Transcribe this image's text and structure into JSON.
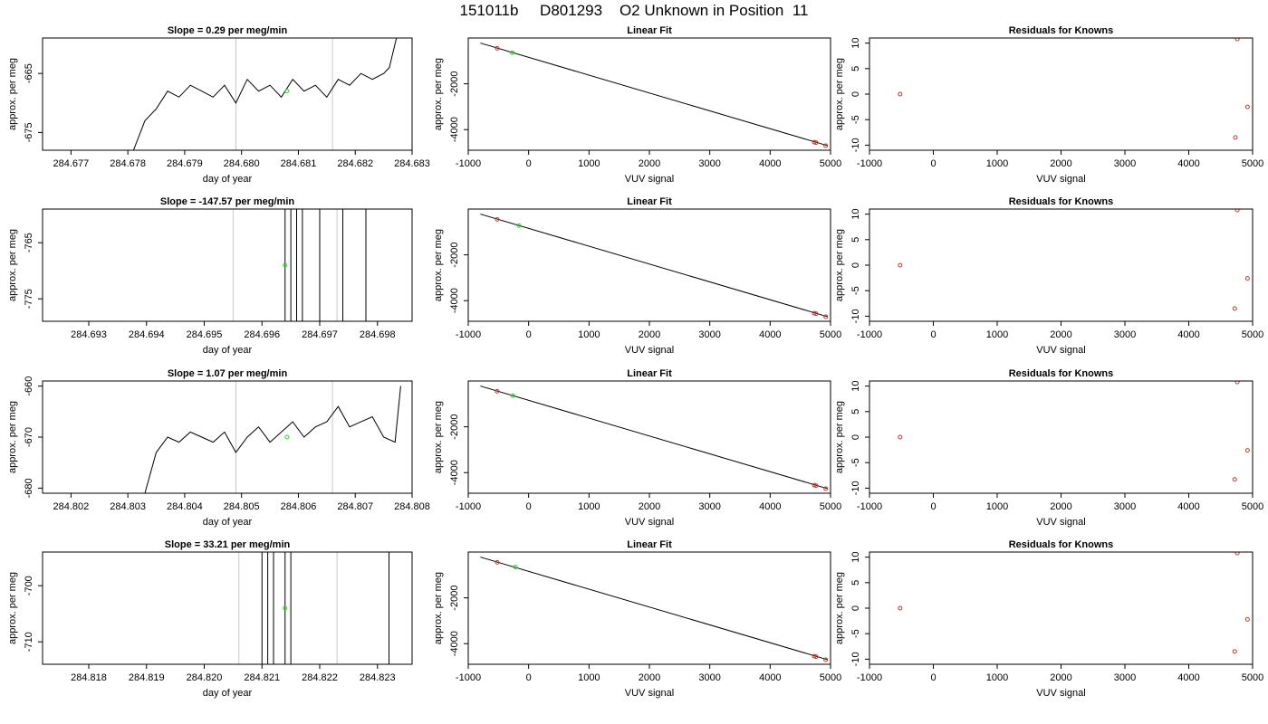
{
  "figure": {
    "title": "151011b     D801293    O2 Unknown in Position  11",
    "colors": {
      "trace": "#000000",
      "marker_line": "#c8c8c8",
      "unknown_point": "#22dd22",
      "known_point": "#c0392b"
    }
  },
  "chart_data": [
    {
      "type": "line",
      "title": "Slope =  0.29  per meg/min",
      "xlabel": "day of year",
      "ylabel": "approx. per meg",
      "xlim": [
        284.6765,
        284.683
      ],
      "ylim": [
        -678,
        -659
      ],
      "xticks": [
        "284.677",
        "284.678",
        "284.679",
        "284.680",
        "284.681",
        "284.682",
        "284.683"
      ],
      "yticks": [
        "-665",
        "-675"
      ],
      "vlines": [
        284.6799,
        284.6816
      ],
      "unknown_point": {
        "x": 284.6808,
        "y": -668
      },
      "series": [
        {
          "x": [
            284.6781,
            284.6783,
            284.6785,
            284.6787,
            284.6789,
            284.6791,
            284.6793,
            284.6795,
            284.6797,
            284.6799,
            284.6801,
            284.6803,
            284.6805,
            284.6807,
            284.6809,
            284.6811,
            284.6813,
            284.6815,
            284.6817,
            284.6819,
            284.6821,
            284.6823,
            284.6825,
            284.6826,
            284.68275
          ],
          "y": [
            -678,
            -673,
            -671,
            -668,
            -669,
            -667,
            -668,
            -669,
            -667,
            -670,
            -666,
            -668,
            -667,
            -669,
            -666,
            -668,
            -667,
            -669,
            -666,
            -667,
            -665,
            -666,
            -665,
            -664,
            -658
          ]
        }
      ]
    },
    {
      "type": "line",
      "title": "Slope =  -147.57  per meg/min",
      "xlabel": "day of year",
      "ylabel": "approx. per meg",
      "xlim": [
        284.6922,
        284.6986
      ],
      "ylim": [
        -779,
        -759
      ],
      "xticks": [
        "284.693",
        "284.694",
        "284.695",
        "284.696",
        "284.697",
        "284.698"
      ],
      "yticks": [
        "-765",
        "-775"
      ],
      "vlines": [
        284.6955,
        284.6973
      ],
      "unknown_point": {
        "x": 284.6964,
        "y": -769
      },
      "spikes": [
        284.6964,
        284.6965,
        284.6966,
        284.6967,
        284.697,
        284.6974,
        284.6978,
        284.6978
      ]
    },
    {
      "type": "line",
      "title": "Slope =  1.07  per meg/min",
      "xlabel": "day of year",
      "ylabel": "approx. per meg",
      "xlim": [
        284.8015,
        284.808
      ],
      "ylim": [
        -681,
        -659
      ],
      "xticks": [
        "284.802",
        "284.803",
        "284.804",
        "284.805",
        "284.806",
        "284.807",
        "284.808"
      ],
      "yticks": [
        "-660",
        "-670",
        "-680"
      ],
      "vlines": [
        284.8049,
        284.8066
      ],
      "unknown_point": {
        "x": 284.8058,
        "y": -670
      },
      "series": [
        {
          "x": [
            284.8033,
            284.8035,
            284.8037,
            284.8039,
            284.8041,
            284.8043,
            284.8045,
            284.8047,
            284.8049,
            284.8051,
            284.8053,
            284.8055,
            284.8057,
            284.8059,
            284.8061,
            284.8063,
            284.8065,
            284.8067,
            284.8069,
            284.8071,
            284.8073,
            284.8075,
            284.8077,
            284.8078
          ],
          "y": [
            -681,
            -673,
            -670,
            -671,
            -669,
            -670,
            -671,
            -669,
            -673,
            -670,
            -668,
            -671,
            -669,
            -667,
            -670,
            -668,
            -667,
            -664,
            -668,
            -667,
            -666,
            -670,
            -671,
            -660
          ]
        }
      ]
    },
    {
      "type": "line",
      "title": "Slope =  33.21  per meg/min",
      "xlabel": "day of year",
      "ylabel": "approx. per meg",
      "xlim": [
        284.8172,
        284.8236
      ],
      "ylim": [
        -714,
        -694
      ],
      "xticks": [
        "284.818",
        "284.819",
        "284.820",
        "284.821",
        "284.822",
        "284.823"
      ],
      "yticks": [
        "-700",
        "-710"
      ],
      "vlines": [
        284.8206,
        284.8223
      ],
      "unknown_point": {
        "x": 284.8214,
        "y": -704
      },
      "spikes": [
        284.821,
        284.8211,
        284.8212,
        284.8214,
        284.8215,
        284.8232
      ]
    },
    {
      "type": "scatter",
      "title": "Linear Fit",
      "xlabel": "VUV signal",
      "ylabel": "approx. per meg",
      "xlim": [
        -1000,
        5000
      ],
      "ylim": [
        -4900,
        0
      ],
      "xticks": [
        "-1000",
        "0",
        "1000",
        "2000",
        "3000",
        "4000",
        "5000"
      ],
      "yticks": [
        "-2000",
        "-4000"
      ],
      "fit": [
        [
          -800,
          -220
        ],
        [
          4950,
          -4700
        ]
      ],
      "knowns": [
        [
          -520,
          -450
        ],
        [
          4730,
          -4550
        ],
        [
          4760,
          -4570
        ],
        [
          4920,
          -4700
        ]
      ],
      "unknown": [
        [
          -270,
          -640
        ]
      ]
    },
    {
      "type": "scatter",
      "title": "Linear Fit",
      "xlabel": "VUV signal",
      "ylabel": "approx. per meg",
      "xlim": [
        -1000,
        5000
      ],
      "ylim": [
        -4900,
        0
      ],
      "xticks": [
        "-1000",
        "0",
        "1000",
        "2000",
        "3000",
        "4000",
        "5000"
      ],
      "yticks": [
        "-2000",
        "-4000"
      ],
      "fit": [
        [
          -800,
          -220
        ],
        [
          4950,
          -4700
        ]
      ],
      "knowns": [
        [
          -520,
          -450
        ],
        [
          4730,
          -4550
        ],
        [
          4760,
          -4570
        ],
        [
          4920,
          -4700
        ]
      ],
      "unknown": [
        [
          -160,
          -720
        ]
      ]
    },
    {
      "type": "scatter",
      "title": "Linear Fit",
      "xlabel": "VUV signal",
      "ylabel": "approx. per meg",
      "xlim": [
        -1000,
        5000
      ],
      "ylim": [
        -4900,
        0
      ],
      "xticks": [
        "-1000",
        "0",
        "1000",
        "2000",
        "3000",
        "4000",
        "5000"
      ],
      "yticks": [
        "-2000",
        "-4000"
      ],
      "fit": [
        [
          -800,
          -220
        ],
        [
          4950,
          -4700
        ]
      ],
      "knowns": [
        [
          -520,
          -450
        ],
        [
          4730,
          -4550
        ],
        [
          4760,
          -4570
        ],
        [
          4920,
          -4700
        ]
      ],
      "unknown": [
        [
          -260,
          -640
        ]
      ]
    },
    {
      "type": "scatter",
      "title": "Linear Fit",
      "xlabel": "VUV signal",
      "ylabel": "approx. per meg",
      "xlim": [
        -1000,
        5000
      ],
      "ylim": [
        -4900,
        0
      ],
      "xticks": [
        "-1000",
        "0",
        "1000",
        "2000",
        "3000",
        "4000",
        "5000"
      ],
      "yticks": [
        "-2000",
        "-4000"
      ],
      "fit": [
        [
          -800,
          -220
        ],
        [
          4950,
          -4700
        ]
      ],
      "knowns": [
        [
          -520,
          -450
        ],
        [
          4730,
          -4550
        ],
        [
          4760,
          -4570
        ],
        [
          4920,
          -4700
        ]
      ],
      "unknown": [
        [
          -220,
          -650
        ]
      ]
    },
    {
      "type": "scatter",
      "title": "Residuals for Knowns",
      "xlabel": "VUV signal",
      "ylabel": "approx. per meg",
      "xlim": [
        -1000,
        5000
      ],
      "ylim": [
        -11,
        11
      ],
      "xticks": [
        "-1000",
        "0",
        "1000",
        "2000",
        "3000",
        "4000",
        "5000"
      ],
      "yticks": [
        "-10",
        "-5",
        "0",
        "5",
        "10"
      ],
      "points": [
        [
          -520,
          0
        ],
        [
          4730,
          -8.5
        ],
        [
          4920,
          -2.5
        ],
        [
          4760,
          10.8
        ]
      ]
    },
    {
      "type": "scatter",
      "title": "Residuals for Knowns",
      "xlabel": "VUV signal",
      "ylabel": "approx. per meg",
      "xlim": [
        -1000,
        5000
      ],
      "ylim": [
        -11,
        11
      ],
      "xticks": [
        "-1000",
        "0",
        "1000",
        "2000",
        "3000",
        "4000",
        "5000"
      ],
      "yticks": [
        "-10",
        "-5",
        "0",
        "5",
        "10"
      ],
      "points": [
        [
          -520,
          0
        ],
        [
          4720,
          -8.5
        ],
        [
          4920,
          -2.6
        ],
        [
          4760,
          10.8
        ]
      ]
    },
    {
      "type": "scatter",
      "title": "Residuals for Knowns",
      "xlabel": "VUV signal",
      "ylabel": "approx. per meg",
      "xlim": [
        -1000,
        5000
      ],
      "ylim": [
        -11,
        11
      ],
      "xticks": [
        "-1000",
        "0",
        "1000",
        "2000",
        "3000",
        "4000",
        "5000"
      ],
      "yticks": [
        "-10",
        "-5",
        "0",
        "5",
        "10"
      ],
      "points": [
        [
          -520,
          0
        ],
        [
          4720,
          -8.3
        ],
        [
          4920,
          -2.6
        ],
        [
          4760,
          10.8
        ]
      ]
    },
    {
      "type": "scatter",
      "title": "Residuals for Knowns",
      "xlabel": "VUV signal",
      "ylabel": "approx. per meg",
      "xlim": [
        -1000,
        5000
      ],
      "ylim": [
        -11,
        11
      ],
      "xticks": [
        "-1000",
        "0",
        "1000",
        "2000",
        "3000",
        "4000",
        "5000"
      ],
      "yticks": [
        "-10",
        "-5",
        "0",
        "5",
        "10"
      ],
      "points": [
        [
          -520,
          0
        ],
        [
          4720,
          -8.5
        ],
        [
          4920,
          -2.2
        ],
        [
          4760,
          10.8
        ]
      ]
    }
  ]
}
